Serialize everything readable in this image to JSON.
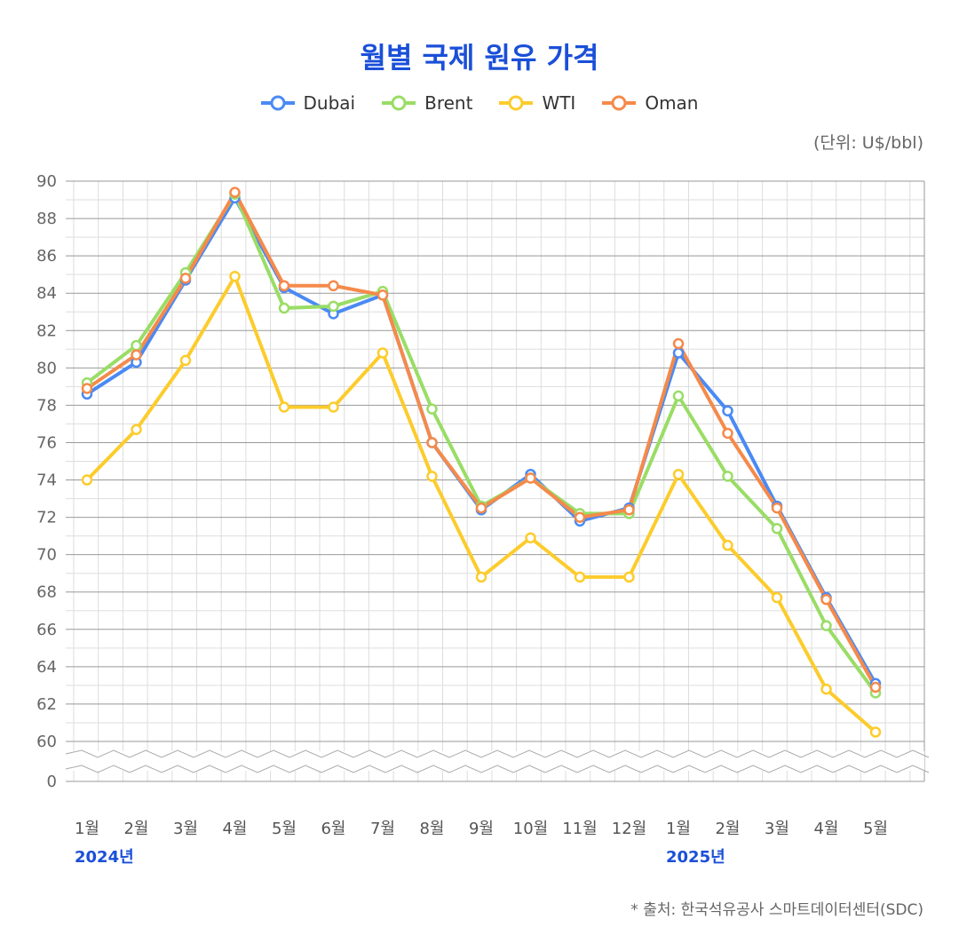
{
  "title": "월별 국제 원유 가격",
  "unit_label": "(단위: U$/bbl)",
  "source_label": "* 출처: 한국석유공사 스마트데이터센터(SDC)",
  "colors": {
    "title": "#1a4fd8",
    "Dubai": "#4a8af4",
    "Brent": "#99dd66",
    "WTI": "#fccc2c",
    "Oman": "#f58a4a",
    "grid_major": "#999999",
    "grid_minor": "#dddddd"
  },
  "chart_data": {
    "type": "line",
    "title": "월별 국제 원유 가격",
    "xlabel": "",
    "ylabel": "U$/bbl",
    "ylim": [
      60,
      90
    ],
    "axis_break": "between 0 and 60",
    "yticks": [
      "90",
      "88",
      "86",
      "84",
      "82",
      "80",
      "78",
      "76",
      "74",
      "72",
      "70",
      "68",
      "66",
      "64",
      "62",
      "60",
      "0"
    ],
    "categories": [
      "1월",
      "2월",
      "3월",
      "4월",
      "5월",
      "6월",
      "7월",
      "8월",
      "9월",
      "10월",
      "11월",
      "12월",
      "1월",
      "2월",
      "3월",
      "4월",
      "5월"
    ],
    "year_labels": [
      {
        "label": "2024년",
        "index": 0
      },
      {
        "label": "2025년",
        "index": 12
      }
    ],
    "series": [
      {
        "name": "Dubai",
        "values": [
          78.6,
          80.3,
          84.7,
          89.1,
          84.3,
          82.9,
          83.9,
          76.0,
          72.4,
          74.3,
          71.8,
          72.5,
          80.8,
          77.7,
          72.6,
          67.7,
          63.1
        ]
      },
      {
        "name": "Brent",
        "values": [
          79.2,
          81.2,
          85.1,
          89.3,
          83.2,
          83.3,
          84.1,
          77.8,
          72.6,
          74.1,
          72.2,
          72.2,
          78.5,
          74.2,
          71.4,
          66.2,
          62.6
        ]
      },
      {
        "name": "WTI",
        "values": [
          74.0,
          76.7,
          80.4,
          84.9,
          77.9,
          77.9,
          80.8,
          74.2,
          68.8,
          70.9,
          68.8,
          68.8,
          74.3,
          70.5,
          67.7,
          62.8,
          60.5
        ]
      },
      {
        "name": "Oman",
        "values": [
          78.9,
          80.7,
          84.8,
          89.4,
          84.4,
          84.4,
          83.9,
          76.0,
          72.5,
          74.1,
          72.0,
          72.4,
          81.3,
          76.5,
          72.5,
          67.6,
          62.9
        ]
      }
    ]
  }
}
